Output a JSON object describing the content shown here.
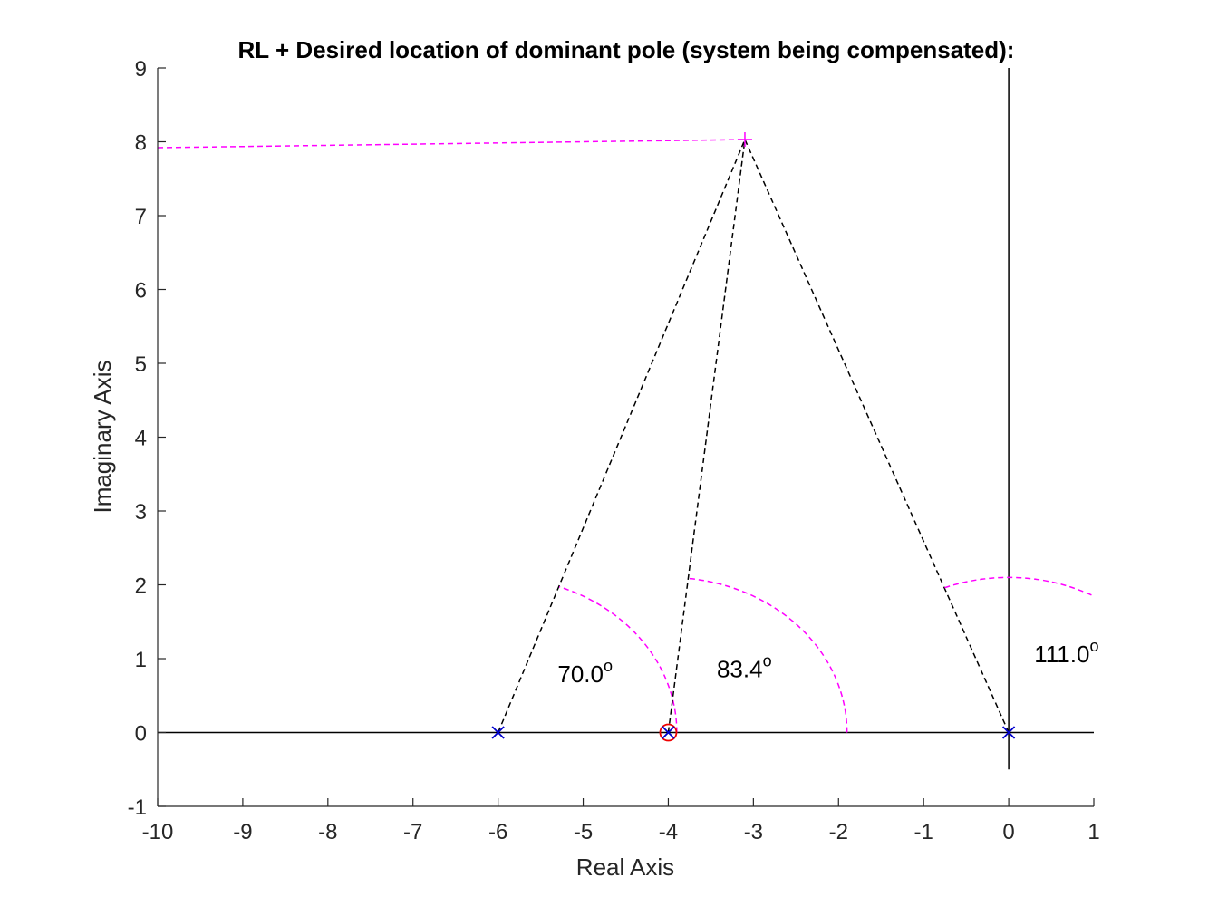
{
  "chart_data": {
    "type": "scatter",
    "title": "RL + Desired location of dominant pole (system being compensated):",
    "xlabel": "Real Axis",
    "ylabel": "Imaginary Axis",
    "xlim": [
      -10,
      1
    ],
    "ylim": [
      -1,
      9
    ],
    "xticks": [
      "-10",
      "-9",
      "-8",
      "-7",
      "-6",
      "-5",
      "-4",
      "-3",
      "-2",
      "-1",
      "0",
      "1"
    ],
    "yticks": [
      "-1",
      "0",
      "1",
      "2",
      "3",
      "4",
      "5",
      "6",
      "7",
      "8",
      "9"
    ],
    "grid": false,
    "colors": {
      "poles": "#0000cc",
      "zero": "#ee0000",
      "construction": "#ff00ff",
      "lines": "#000000"
    },
    "poles": [
      {
        "x": -6,
        "y": 0
      },
      {
        "x": -4,
        "y": 0
      },
      {
        "x": 0,
        "y": 0
      }
    ],
    "zeros": [
      {
        "x": -4,
        "y": 0
      }
    ],
    "desired_pole": {
      "x": -3.1,
      "y": 8.03
    },
    "angles": [
      {
        "from_x": -6,
        "degrees": 70.0,
        "label": "70.0",
        "sup": "o",
        "label_x": -5.3,
        "label_y": 0.68
      },
      {
        "from_x": -4,
        "degrees": 83.4,
        "label": "83.4",
        "sup": "o",
        "label_x": -3.43,
        "label_y": 0.75
      },
      {
        "from_x": 0,
        "degrees": 111.0,
        "label": "111.0",
        "sup": "o",
        "label_x": 0.3,
        "label_y": 0.95
      }
    ],
    "arc_radius": 2.1,
    "root_locus": [
      {
        "points": [
          [
            -10,
            0
          ],
          [
            1,
            0
          ]
        ]
      },
      {
        "points": [
          [
            0,
            -0.5
          ],
          [
            0,
            9
          ]
        ]
      }
    ],
    "horizontal_guide": {
      "points": [
        [
          -10,
          7.92
        ],
        [
          -3.1,
          8.03
        ]
      ]
    }
  }
}
